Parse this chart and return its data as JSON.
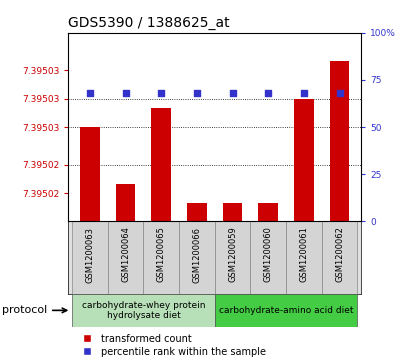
{
  "title": "GDS5390 / 1388625_at",
  "samples": [
    "GSM1200063",
    "GSM1200064",
    "GSM1200065",
    "GSM1200066",
    "GSM1200059",
    "GSM1200060",
    "GSM1200061",
    "GSM1200062"
  ],
  "transformed_count": [
    7.395027,
    7.395021,
    7.395029,
    7.395019,
    7.395019,
    7.395019,
    7.39503,
    7.395034
  ],
  "percentile_rank": [
    68,
    68,
    68,
    68,
    68,
    68,
    68,
    68
  ],
  "ymin": 7.395017,
  "ymax": 7.395037,
  "ytick_values": [
    7.39502,
    7.395023,
    7.395027,
    7.39503,
    7.395033
  ],
  "ytick_labels": [
    "7.39502",
    "7.39502",
    "7.39503",
    "7.39503",
    "7.39503"
  ],
  "yticks_right": [
    0,
    25,
    50,
    75,
    100
  ],
  "bar_color": "#cc0000",
  "dot_color": "#3333cc",
  "bg_color": "#ffffff",
  "protocol_groups": [
    {
      "label": "carbohydrate-whey protein\nhydrolysate diet",
      "indices": [
        0,
        1,
        2,
        3
      ],
      "color": "#b8e0b8"
    },
    {
      "label": "carbohydrate-amino acid diet",
      "indices": [
        4,
        5,
        6,
        7
      ],
      "color": "#44cc44"
    }
  ],
  "protocol_label": "protocol",
  "legend_bar_label": "transformed count",
  "legend_dot_label": "percentile rank within the sample",
  "title_fontsize": 10,
  "tick_label_fontsize": 6.5,
  "sample_fontsize": 6,
  "protocol_fontsize": 6.5,
  "legend_fontsize": 7
}
